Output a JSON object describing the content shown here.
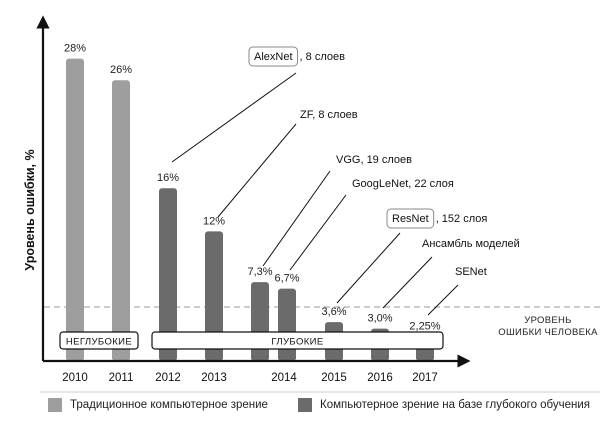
{
  "chart_data": {
    "type": "bar",
    "ylabel": "Уровень ошибки, %",
    "categories": [
      "2010",
      "2011",
      "2012",
      "2013",
      "2014",
      "2015",
      "2016",
      "2017"
    ],
    "bars": [
      {
        "year": "2010",
        "value": 28,
        "label": "28%",
        "series": "traditional"
      },
      {
        "year": "2011",
        "value": 26,
        "label": "26%",
        "series": "traditional"
      },
      {
        "year": "2012",
        "value": 16,
        "label": "16%",
        "series": "deep"
      },
      {
        "year": "2013",
        "value": 12,
        "label": "12%",
        "series": "deep"
      },
      {
        "year": "2014",
        "value": 7.3,
        "label": "7,3%",
        "series": "deep"
      },
      {
        "year": "2014",
        "value": 6.7,
        "label": "6,7%",
        "series": "deep"
      },
      {
        "year": "2015",
        "value": 3.6,
        "label": "3,6%",
        "series": "deep"
      },
      {
        "year": "2016",
        "value": 3.0,
        "label": "3,0%",
        "series": "deep"
      },
      {
        "year": "2017",
        "value": 2.25,
        "label": "2,25%",
        "series": "deep"
      }
    ],
    "annotations": [
      {
        "name": "AlexNet",
        "suffix": ", 8 слоев",
        "boxed": true,
        "target_bar": 2
      },
      {
        "name": "ZF",
        "suffix": ", 8 слоев",
        "boxed": false,
        "target_bar": 3
      },
      {
        "name": "VGG",
        "suffix": ", 19 слоев",
        "boxed": false,
        "target_bar": 4
      },
      {
        "name": "GoogLeNet",
        "suffix": ", 22 слоя",
        "boxed": false,
        "target_bar": 5
      },
      {
        "name": "ResNet",
        "suffix": ", 152 слоя",
        "boxed": true,
        "target_bar": 6
      },
      {
        "name": "Ансамбль моделей",
        "suffix": "",
        "boxed": false,
        "target_bar": 7
      },
      {
        "name": "SENet",
        "suffix": "",
        "boxed": false,
        "target_bar": 8
      }
    ],
    "human_error": {
      "value": 5,
      "label_line1": "УРОВЕНЬ",
      "label_line2": "ОШИБКИ ЧЕЛОВЕКА"
    },
    "groups": [
      {
        "label": "НЕГЛУБОКИЕ"
      },
      {
        "label": "ГЛУБОКИЕ"
      }
    ],
    "series": [
      {
        "key": "traditional",
        "name": "Традиционное компьютерное зрение",
        "color": "#9e9e9e"
      },
      {
        "key": "deep",
        "name": "Компьютерное зрение на базе глубокого обучения",
        "color": "#6b6b6b"
      }
    ],
    "ylim": [
      0,
      32
    ],
    "grid": false,
    "legend_position": "bottom"
  }
}
